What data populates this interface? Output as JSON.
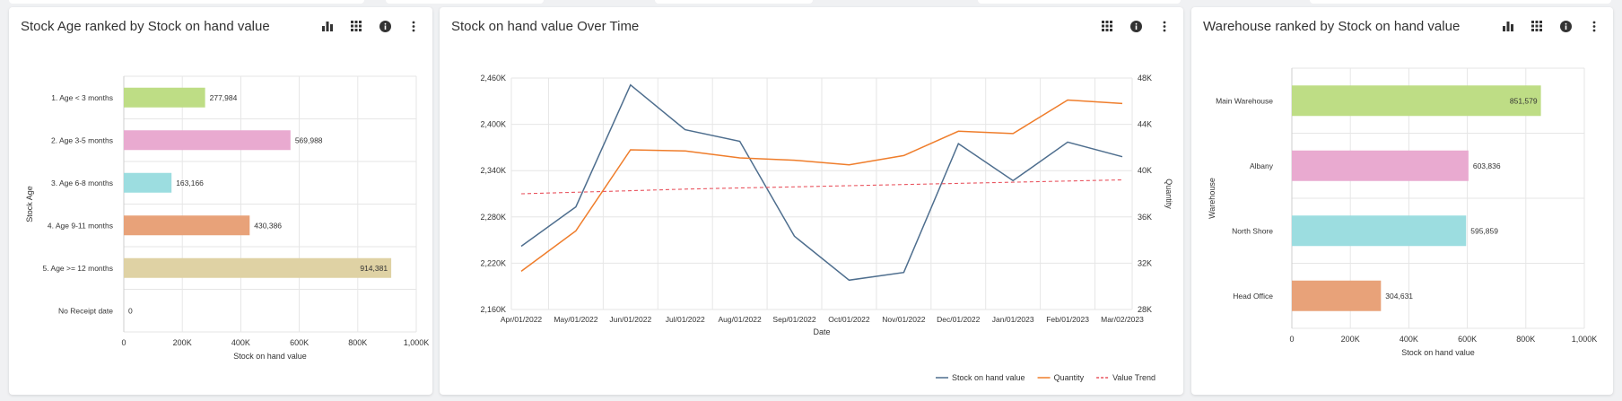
{
  "panels": [
    {
      "title": "Stock Age ranked by Stock on hand value",
      "tools": [
        "bar-chart-icon",
        "grid-icon",
        "info-icon",
        "more-icon"
      ],
      "chart_data": {
        "type": "bar",
        "orientation": "horizontal",
        "categories": [
          "1. Age < 3 months",
          "2. Age 3-5 months",
          "3. Age 6-8 months",
          "4. Age 9-11 months",
          "5. Age >= 12 months",
          "No Receipt date"
        ],
        "values": [
          277984,
          569988,
          163166,
          430386,
          914381,
          0
        ],
        "value_labels": [
          "277,984",
          "569,988",
          "163,166",
          "430,386",
          "914,381",
          "0"
        ],
        "colors": [
          "#bedd85",
          "#e9aad0",
          "#9cdde0",
          "#e8a279",
          "#dfd2a4",
          "#c9c9c9"
        ],
        "xlabel": "Stock on hand value",
        "ylabel": "Stock Age",
        "xlim": [
          0,
          1000000
        ],
        "xticks": [
          0,
          200000,
          400000,
          600000,
          800000,
          1000000
        ],
        "xtick_labels": [
          "0",
          "200K",
          "400K",
          "600K",
          "800K",
          "1,000K"
        ],
        "grid": true
      }
    },
    {
      "title": "Stock on hand value Over Time",
      "tools": [
        "grid-icon",
        "info-icon",
        "more-icon"
      ],
      "chart_data": {
        "type": "line",
        "x": [
          "Apr/01/2022",
          "May/01/2022",
          "Jun/01/2022",
          "Jul/01/2022",
          "Aug/01/2022",
          "Sep/01/2022",
          "Oct/01/2022",
          "Nov/01/2022",
          "Dec/01/2022",
          "Jan/01/2023",
          "Feb/01/2023",
          "Mar/02/2023"
        ],
        "xlabel": "Date",
        "ylabel_left": "",
        "ylabel_right": "Quantity",
        "ylim_left": [
          2160000,
          2460000
        ],
        "yticks_left": [
          "2,160K",
          "2,220K",
          "2,280K",
          "2,340K",
          "2,400K",
          "2,460K"
        ],
        "ylim_right": [
          28000,
          48000
        ],
        "yticks_right": [
          "28K",
          "32K",
          "36K",
          "40K",
          "44K",
          "48K"
        ],
        "series": [
          {
            "name": "Stock on hand value",
            "axis": "left",
            "color": "#4e6e8e",
            "dash": false,
            "values": [
              2242000,
              2293000,
              2451000,
              2393000,
              2378000,
              2255000,
              2198000,
              2208000,
              2375000,
              2327000,
              2377000,
              2358000
            ]
          },
          {
            "name": "Quantity",
            "axis": "right",
            "color": "#ef7d2b",
            "dash": false,
            "values": [
              31300,
              34800,
              41800,
              41700,
              41100,
              40900,
              40500,
              41300,
              43400,
              43200,
              46100,
              45800
            ]
          },
          {
            "name": "Value Trend",
            "axis": "left",
            "color": "#e9545f",
            "dash": true,
            "values": [
              2310000,
              2312000,
              2314000,
              2316000,
              2317500,
              2319000,
              2320500,
              2322000,
              2323500,
              2325000,
              2326500,
              2328000
            ]
          }
        ],
        "legend_position": "bottom-right",
        "grid": true
      }
    },
    {
      "title": "Warehouse ranked by Stock on hand value",
      "tools": [
        "bar-chart-icon",
        "grid-icon",
        "info-icon",
        "more-icon"
      ],
      "chart_data": {
        "type": "bar",
        "orientation": "horizontal",
        "categories": [
          "Main Warehouse",
          "Albany",
          "North Shore",
          "Head Office"
        ],
        "values": [
          851579,
          603836,
          595859,
          304631
        ],
        "value_labels": [
          "851,579",
          "603,836",
          "595,859",
          "304,631"
        ],
        "colors": [
          "#bedd85",
          "#e9aad0",
          "#9cdde0",
          "#e8a279"
        ],
        "xlabel": "Stock on hand value",
        "ylabel": "Warehouse",
        "xlim": [
          0,
          1000000
        ],
        "xticks": [
          0,
          200000,
          400000,
          600000,
          800000,
          1000000
        ],
        "xtick_labels": [
          "0",
          "200K",
          "400K",
          "600K",
          "800K",
          "1,000K"
        ],
        "grid": true
      }
    }
  ]
}
